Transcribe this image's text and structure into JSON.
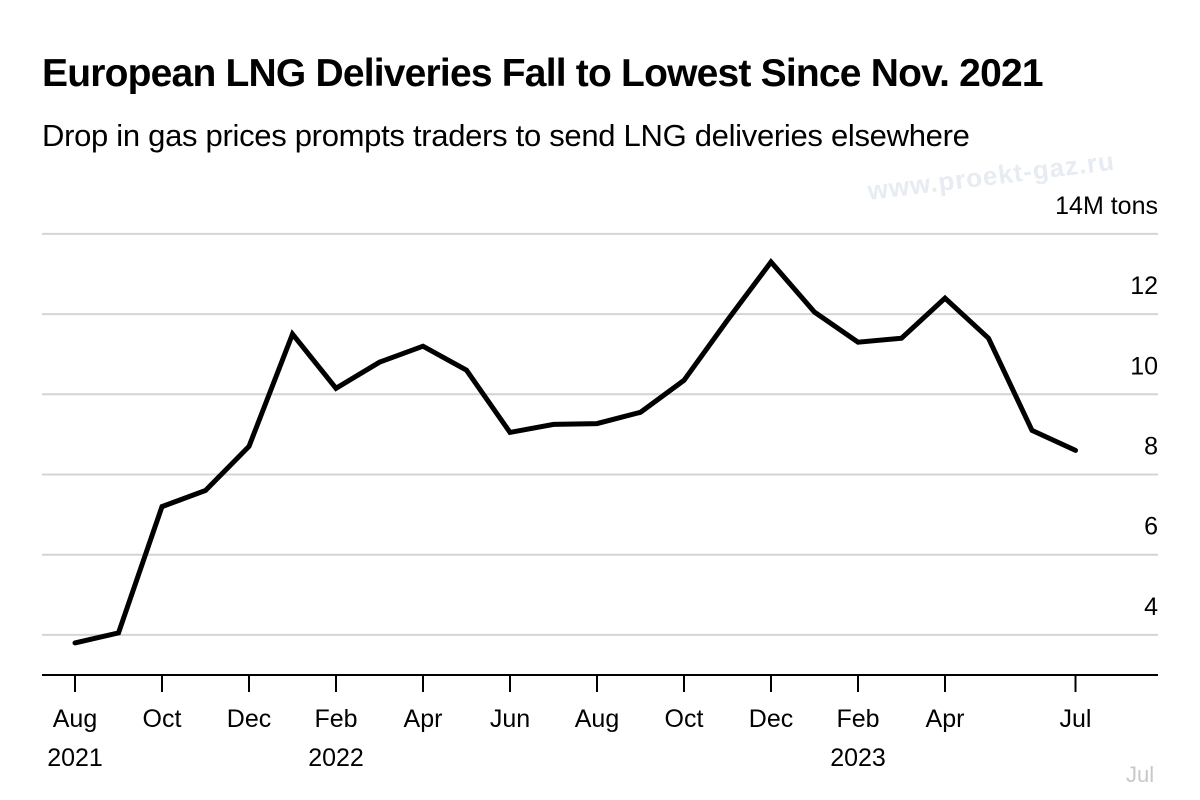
{
  "chart_data": {
    "type": "line",
    "title": "European LNG Deliveries Fall to Lowest Since Nov. 2021",
    "subtitle": "Drop in gas prices prompts traders to send LNG deliveries elsewhere",
    "unit_label": "14M tons",
    "ylim": [
      3,
      14
    ],
    "yticks": [
      4,
      6,
      8,
      10,
      12
    ],
    "x_labels": [
      {
        "month_index": 0,
        "label": "Aug",
        "year": "2021"
      },
      {
        "month_index": 2,
        "label": "Oct",
        "year": ""
      },
      {
        "month_index": 4,
        "label": "Dec",
        "year": ""
      },
      {
        "month_index": 6,
        "label": "Feb",
        "year": "2022"
      },
      {
        "month_index": 8,
        "label": "Apr",
        "year": ""
      },
      {
        "month_index": 10,
        "label": "Jun",
        "year": ""
      },
      {
        "month_index": 12,
        "label": "Aug",
        "year": ""
      },
      {
        "month_index": 14,
        "label": "Oct",
        "year": ""
      },
      {
        "month_index": 16,
        "label": "Dec",
        "year": ""
      },
      {
        "month_index": 18,
        "label": "Feb",
        "year": "2023"
      },
      {
        "month_index": 20,
        "label": "Apr",
        "year": ""
      },
      {
        "month_index": 23,
        "label": "Jul",
        "year": ""
      }
    ],
    "series": [
      {
        "name": "European LNG deliveries",
        "values": [
          {
            "month_index": 0,
            "value": 3.8
          },
          {
            "month_index": 1,
            "value": 4.05
          },
          {
            "month_index": 2,
            "value": 7.2
          },
          {
            "month_index": 3,
            "value": 7.6
          },
          {
            "month_index": 4,
            "value": 8.7
          },
          {
            "month_index": 5,
            "value": 11.5
          },
          {
            "month_index": 6,
            "value": 10.15
          },
          {
            "month_index": 7,
            "value": 10.8
          },
          {
            "month_index": 8,
            "value": 11.2
          },
          {
            "month_index": 9,
            "value": 10.6
          },
          {
            "month_index": 10,
            "value": 9.05
          },
          {
            "month_index": 11,
            "value": 9.25
          },
          {
            "month_index": 12,
            "value": 9.27
          },
          {
            "month_index": 13,
            "value": 9.55
          },
          {
            "month_index": 14,
            "value": 10.35
          },
          {
            "month_index": 15,
            "value": 11.85
          },
          {
            "month_index": 16,
            "value": 13.3
          },
          {
            "month_index": 17,
            "value": 12.05
          },
          {
            "month_index": 18,
            "value": 11.3
          },
          {
            "month_index": 19,
            "value": 11.4
          },
          {
            "month_index": 20,
            "value": 12.4
          },
          {
            "month_index": 21,
            "value": 11.4
          },
          {
            "month_index": 22,
            "value": 9.1
          },
          {
            "month_index": 23,
            "value": 8.6
          }
        ]
      }
    ]
  },
  "watermark": "www.proekt-gaz.ru",
  "corner_mark": "Jul"
}
